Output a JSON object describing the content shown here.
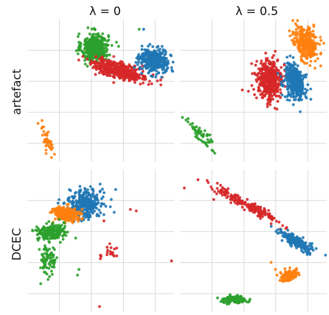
{
  "figure": {
    "columns": [
      "λ = 0",
      "λ = 0.5"
    ],
    "rows": [
      "artefact",
      "DCEC"
    ]
  },
  "colors": {
    "blue": "#1f77b4",
    "orange": "#ff7f0e",
    "green": "#2ca02c",
    "red": "#d62728"
  },
  "chart_data": [
    {
      "type": "scatter",
      "row": "artefact",
      "column": "λ = 0",
      "grid": true,
      "xlim": [
        0,
        10
      ],
      "ylim": [
        0,
        10
      ],
      "clusters": [
        {
          "color": "green",
          "cx": 4.6,
          "cy": 8.0,
          "sx": 0.45,
          "sy": 0.5,
          "n": 420,
          "rot": 0
        },
        {
          "color": "red",
          "cx": 6.3,
          "cy": 6.4,
          "sx": 1.0,
          "sy": 0.28,
          "n": 380,
          "rot": -15
        },
        {
          "color": "blue",
          "cx": 8.6,
          "cy": 7.1,
          "sx": 0.5,
          "sy": 0.4,
          "n": 360,
          "rot": -20
        },
        {
          "color": "orange",
          "cx": 1.3,
          "cy": 1.6,
          "sx": 0.15,
          "sy": 0.55,
          "n": 40,
          "rot": 20
        }
      ],
      "outliers": [
        {
          "color": "green",
          "x": 7.6,
          "y": 9.3
        },
        {
          "color": "blue",
          "x": 7.9,
          "y": 9.3
        },
        {
          "color": "green",
          "x": 6.2,
          "y": 8.1
        },
        {
          "color": "red",
          "x": 4.3,
          "y": 6.9
        }
      ]
    },
    {
      "type": "scatter",
      "row": "artefact",
      "column": "λ = 0.5",
      "grid": true,
      "xlim": [
        0,
        10
      ],
      "ylim": [
        0,
        10
      ],
      "clusters": [
        {
          "color": "orange",
          "cx": 8.6,
          "cy": 8.3,
          "sx": 0.4,
          "sy": 0.6,
          "n": 300,
          "rot": 25
        },
        {
          "color": "red",
          "cx": 6.1,
          "cy": 5.7,
          "sx": 0.45,
          "sy": 0.75,
          "n": 420,
          "rot": 0
        },
        {
          "color": "blue",
          "cx": 7.8,
          "cy": 5.6,
          "sx": 0.35,
          "sy": 0.65,
          "n": 340,
          "rot": 15
        },
        {
          "color": "green",
          "cx": 1.5,
          "cy": 1.9,
          "sx": 0.18,
          "sy": 0.7,
          "n": 60,
          "rot": 40
        }
      ],
      "outliers": [
        {
          "color": "red",
          "x": 7.1,
          "y": 6.8
        },
        {
          "color": "red",
          "x": 6.6,
          "y": 3.7
        },
        {
          "color": "orange",
          "x": 9.1,
          "y": 9.6
        }
      ]
    },
    {
      "type": "scatter",
      "row": "DCEC",
      "column": "λ = 0",
      "grid": true,
      "xlim": [
        0,
        10
      ],
      "ylim": [
        0,
        10
      ],
      "clusters": [
        {
          "color": "blue",
          "cx": 3.9,
          "cy": 7.6,
          "sx": 0.55,
          "sy": 0.5,
          "n": 320,
          "rot": 0
        },
        {
          "color": "orange",
          "cx": 2.6,
          "cy": 6.9,
          "sx": 0.45,
          "sy": 0.25,
          "n": 220,
          "rot": -10
        },
        {
          "color": "green",
          "cx": 1.6,
          "cy": 5.6,
          "sx": 0.45,
          "sy": 0.3,
          "n": 200,
          "rot": 0
        },
        {
          "color": "green",
          "cx": 1.4,
          "cy": 3.7,
          "sx": 0.3,
          "sy": 0.5,
          "n": 80,
          "rot": 0
        },
        {
          "color": "red",
          "cx": 5.4,
          "cy": 4.2,
          "sx": 0.4,
          "sy": 0.2,
          "n": 20,
          "rot": 0
        }
      ],
      "outliers": [
        {
          "color": "green",
          "x": 1.4,
          "y": 2.3
        },
        {
          "color": "green",
          "x": 0.9,
          "y": 2.0
        },
        {
          "color": "green",
          "x": 3.5,
          "y": 3.0
        },
        {
          "color": "green",
          "x": 3.4,
          "y": 2.6
        },
        {
          "color": "blue",
          "x": 5.7,
          "y": 7.9
        },
        {
          "color": "blue",
          "x": 6.0,
          "y": 8.6
        },
        {
          "color": "red",
          "x": 5.2,
          "y": 6.4
        },
        {
          "color": "red",
          "x": 7.4,
          "y": 7.1
        },
        {
          "color": "red",
          "x": 7.0,
          "y": 7.2
        },
        {
          "color": "red",
          "x": 5.6,
          "y": 4.8
        },
        {
          "color": "red",
          "x": 4.9,
          "y": 0.4
        },
        {
          "color": "red",
          "x": 9.8,
          "y": 3.6
        },
        {
          "color": "blue",
          "x": 5.9,
          "y": 7.0
        }
      ]
    },
    {
      "type": "scatter",
      "row": "DCEC",
      "column": "λ = 0.5",
      "grid": true,
      "xlim": [
        0,
        10
      ],
      "ylim": [
        0,
        10
      ],
      "clusters": [
        {
          "color": "red",
          "cx": 4.6,
          "cy": 7.5,
          "sx": 1.3,
          "sy": 0.15,
          "n": 180,
          "rot": -30
        },
        {
          "color": "blue",
          "cx": 8.0,
          "cy": 4.9,
          "sx": 0.75,
          "sy": 0.18,
          "n": 160,
          "rot": -28
        },
        {
          "color": "orange",
          "cx": 7.4,
          "cy": 2.6,
          "sx": 0.3,
          "sy": 0.2,
          "n": 90,
          "rot": 20
        },
        {
          "color": "green",
          "cx": 3.7,
          "cy": 0.9,
          "sx": 0.4,
          "sy": 0.12,
          "n": 140,
          "rot": 0
        }
      ],
      "outliers": [
        {
          "color": "red",
          "x": 0.3,
          "y": 8.7
        },
        {
          "color": "red",
          "x": 2.3,
          "y": 7.9
        },
        {
          "color": "red",
          "x": 2.5,
          "y": 8.3
        },
        {
          "color": "red",
          "x": 6.2,
          "y": 6.2
        },
        {
          "color": "orange",
          "x": 6.2,
          "y": 3.5
        },
        {
          "color": "orange",
          "x": 6.5,
          "y": 3.0
        },
        {
          "color": "blue",
          "x": 9.9,
          "y": 4.0
        }
      ]
    }
  ]
}
